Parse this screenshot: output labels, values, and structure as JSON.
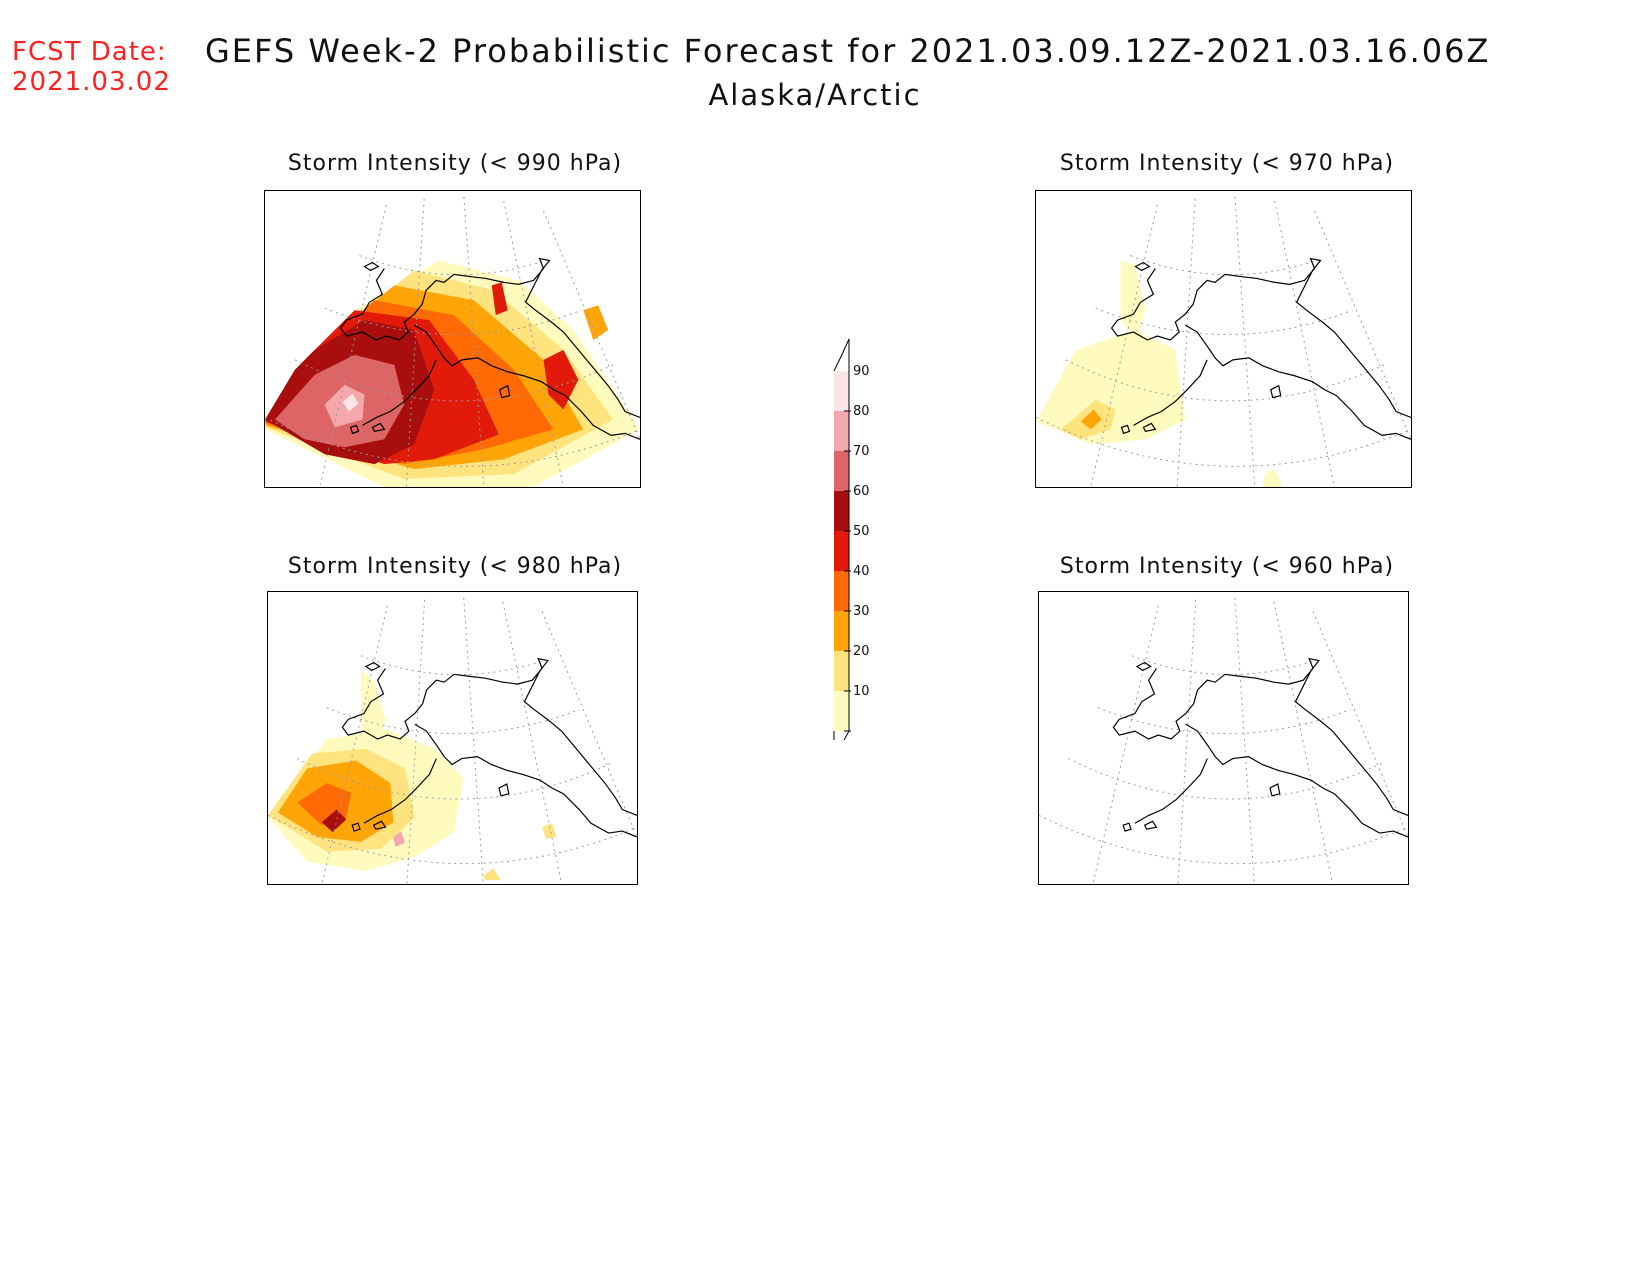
{
  "header": {
    "fcst_label": "FCST Date:",
    "fcst_date": "2021.03.02",
    "title": "GEFS Week-2 Probabilistic Forecast for 2021.03.09.12Z-2021.03.16.06Z",
    "subtitle": "Alaska/Arctic"
  },
  "panels": [
    {
      "id": "p990",
      "title": "Storm Intensity (< 990 hPa)"
    },
    {
      "id": "p970",
      "title": "Storm Intensity (< 970 hPa)"
    },
    {
      "id": "p980",
      "title": "Storm Intensity (< 980 hPa)"
    },
    {
      "id": "p960",
      "title": "Storm Intensity (< 960 hPa)"
    }
  ],
  "colorbar": {
    "labels": [
      "90",
      "80",
      "70",
      "60",
      "50",
      "40",
      "30",
      "20",
      "10"
    ],
    "colors": [
      "#fde4e6",
      "#f4a8ac",
      "#de6565",
      "#a80e0e",
      "#e11a0a",
      "#ff6a05",
      "#ffa508",
      "#ffe37e",
      "#fffbbf"
    ],
    "unit": "%"
  },
  "map": {
    "coast_color": "#000000",
    "grid_color": "#9a9a9a",
    "domain": "Alaska/Arctic"
  }
}
